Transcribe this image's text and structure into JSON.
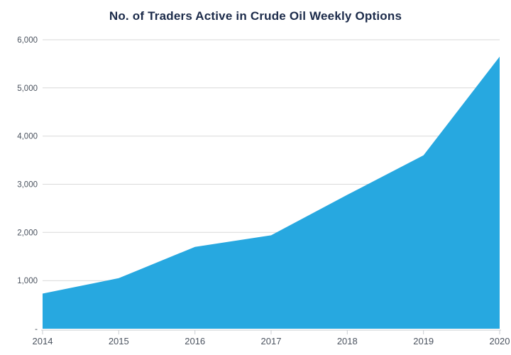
{
  "chart_data": {
    "type": "area",
    "title": "No. of Traders Active in Crude Oil Weekly Options",
    "categories": [
      "2014",
      "2015",
      "2016",
      "2017",
      "2018",
      "2019",
      "2020"
    ],
    "values": [
      730,
      1050,
      1700,
      1940,
      2780,
      3600,
      5650
    ],
    "xlabel": "",
    "ylabel": "",
    "ylim": [
      0,
      6000
    ],
    "y_ticks": [
      {
        "value": 0,
        "label": "-"
      },
      {
        "value": 1000,
        "label": "1,000"
      },
      {
        "value": 2000,
        "label": "2,000"
      },
      {
        "value": 3000,
        "label": "3,000"
      },
      {
        "value": 4000,
        "label": "4,000"
      },
      {
        "value": 5000,
        "label": "5,000"
      },
      {
        "value": 6000,
        "label": "6,000"
      }
    ],
    "grid": true,
    "legend": "none",
    "colors": {
      "area": "#27a8e0",
      "title": "#1c2b4a",
      "axis_label": "#4a525e",
      "gridline": "#d9d9d9",
      "axis_line": "#c9cdd2"
    }
  }
}
